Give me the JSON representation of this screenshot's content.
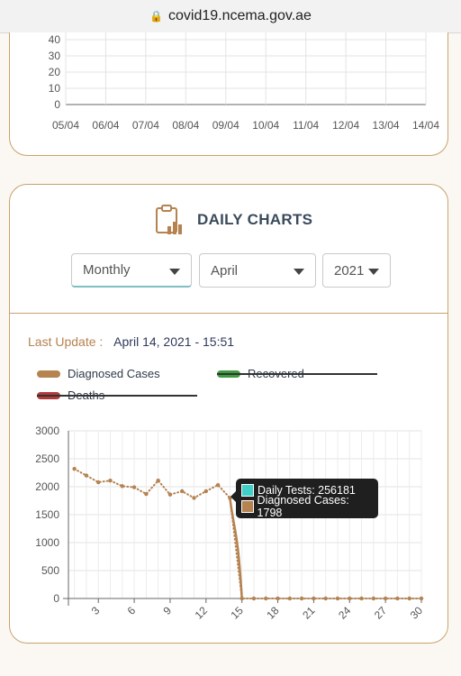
{
  "browser": {
    "url": "covid19.ncema.gov.ae"
  },
  "top_chart": {
    "y_ticks": [
      "40",
      "30",
      "20",
      "10",
      "0"
    ],
    "x_ticks": [
      "05/04",
      "06/04",
      "07/04",
      "08/04",
      "09/04",
      "10/04",
      "11/04",
      "12/04",
      "13/04",
      "14/04"
    ]
  },
  "daily": {
    "title": "DAILY CHARTS",
    "filters": {
      "period": "Monthly",
      "month": "April",
      "year": "2021"
    },
    "last_update_label": "Last Update :",
    "last_update_value": "April 14, 2021 - 15:51",
    "legend": [
      {
        "label": "Diagnosed Cases",
        "color": "#b58250",
        "hidden": false
      },
      {
        "label": "Recovered",
        "color": "#3e9a3e",
        "hidden": true
      },
      {
        "label": "Deaths",
        "color": "#b33a3a",
        "hidden": true
      }
    ],
    "tooltip": {
      "tests_label": "Daily Tests: 256181",
      "tests_color": "#40d0c8",
      "cases_label": "Diagnosed Cases: 1798",
      "cases_color": "#b58250"
    }
  },
  "chart_data": {
    "type": "line",
    "y_ticks": [
      "3000",
      "2500",
      "2000",
      "1500",
      "1000",
      "500",
      "0"
    ],
    "ylim": [
      0,
      3000
    ],
    "x_tick_labels": [
      "3",
      "6",
      "9",
      "12",
      "15",
      "18",
      "21",
      "24",
      "27",
      "30"
    ],
    "x": [
      1,
      2,
      3,
      4,
      5,
      6,
      7,
      8,
      9,
      10,
      11,
      12,
      13,
      14,
      15,
      16,
      17,
      18,
      19,
      20,
      21,
      22,
      23,
      24,
      25,
      26,
      27,
      28,
      29,
      30
    ],
    "series": [
      {
        "name": "Diagnosed Cases",
        "color": "#b58250",
        "values": [
          2320,
          2200,
          2080,
          2110,
          2010,
          1990,
          1870,
          2110,
          1860,
          1920,
          1800,
          1920,
          2030,
          1798,
          0,
          0,
          0,
          0,
          0,
          0,
          0,
          0,
          0,
          0,
          0,
          0,
          0,
          0,
          0,
          0
        ]
      }
    ]
  }
}
